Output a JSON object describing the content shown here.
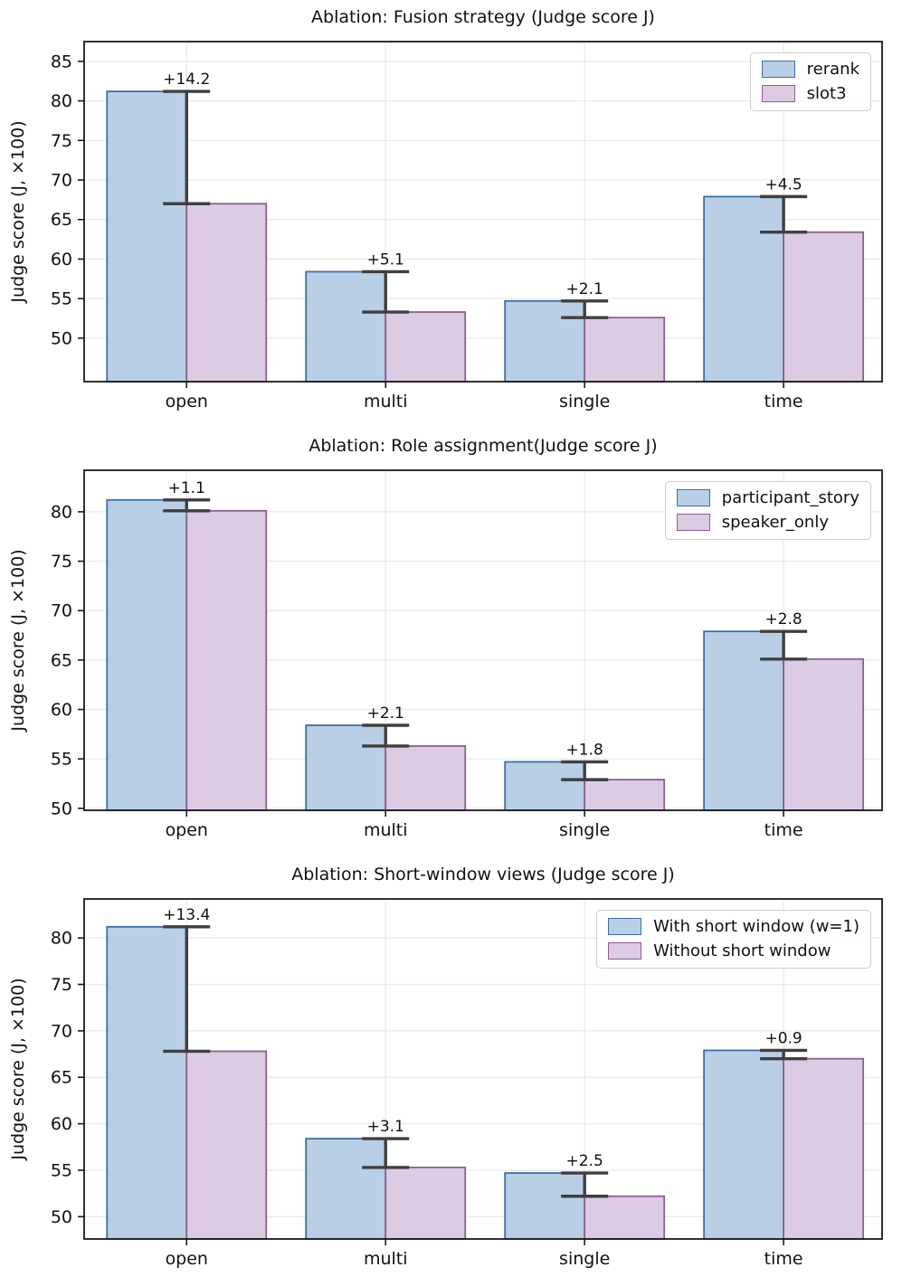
{
  "figure": {
    "background": "#ffffff"
  },
  "style": {
    "errorbar_color": "#3f3f3f",
    "grid_color": "#e9e9e9",
    "frame_color": "#1a1a1a",
    "tick_color": "#1a1a1a",
    "text_color": "#111111",
    "annotation_color": "#3c3c3c",
    "legend_border": "#cccccc",
    "legend_bg": "#ffffff"
  },
  "chart_data": [
    {
      "id": "fusion-strategy",
      "type": "bar",
      "title": "Ablation: Fusion strategy (Judge score J)",
      "xlabel": "",
      "ylabel": "Judge score (J, ×100)",
      "categories": [
        "open",
        "multi",
        "single",
        "time"
      ],
      "series": [
        {
          "name": "rerank",
          "values": [
            81.2,
            58.4,
            54.7,
            67.9
          ],
          "fill": "#b8cfe6",
          "edge": "#3f6fa3"
        },
        {
          "name": "slot3",
          "values": [
            67.0,
            53.3,
            52.6,
            63.4
          ],
          "fill": "#ddcbe4",
          "edge": "#8d5f90"
        }
      ],
      "delta_labels": [
        "+14.2",
        "+5.1",
        "+2.1",
        "+4.5"
      ],
      "ylim": [
        44.5,
        87.5
      ],
      "yticks": [
        50,
        55,
        60,
        65,
        70,
        75,
        80,
        85
      ],
      "grid": true,
      "legend_position": "upper right"
    },
    {
      "id": "role-assignment",
      "type": "bar",
      "title": "Ablation: Role assignment(Judge score J)",
      "xlabel": "",
      "ylabel": "Judge score (J, ×100)",
      "categories": [
        "open",
        "multi",
        "single",
        "time"
      ],
      "series": [
        {
          "name": "participant_story",
          "values": [
            81.2,
            58.4,
            54.7,
            67.9
          ],
          "fill": "#b8cfe6",
          "edge": "#3f6fa3"
        },
        {
          "name": "speaker_only",
          "values": [
            80.1,
            56.3,
            52.9,
            65.1
          ],
          "fill": "#ddcbe4",
          "edge": "#8d5f90"
        }
      ],
      "delta_labels": [
        "+1.1",
        "+2.1",
        "+1.8",
        "+2.8"
      ],
      "ylim": [
        49.8,
        84.2
      ],
      "yticks": [
        50,
        55,
        60,
        65,
        70,
        75,
        80
      ],
      "grid": true,
      "legend_position": "upper right"
    },
    {
      "id": "short-window-views",
      "type": "bar",
      "title": "Ablation: Short-window views (Judge score J)",
      "xlabel": "",
      "ylabel": "Judge score (J, ×100)",
      "categories": [
        "open",
        "multi",
        "single",
        "time"
      ],
      "series": [
        {
          "name": "With short window (w=1)",
          "values": [
            81.2,
            58.4,
            54.7,
            67.9
          ],
          "fill": "#b8cfe6",
          "edge": "#3f6fa3"
        },
        {
          "name": "Without short window",
          "values": [
            67.8,
            55.3,
            52.2,
            67.0
          ],
          "fill": "#ddcbe4",
          "edge": "#8d5f90"
        }
      ],
      "delta_labels": [
        "+13.4",
        "+3.1",
        "+2.5",
        "+0.9"
      ],
      "ylim": [
        47.6,
        84.2
      ],
      "yticks": [
        50,
        55,
        60,
        65,
        70,
        75,
        80
      ],
      "grid": true,
      "legend_position": "upper right"
    }
  ]
}
